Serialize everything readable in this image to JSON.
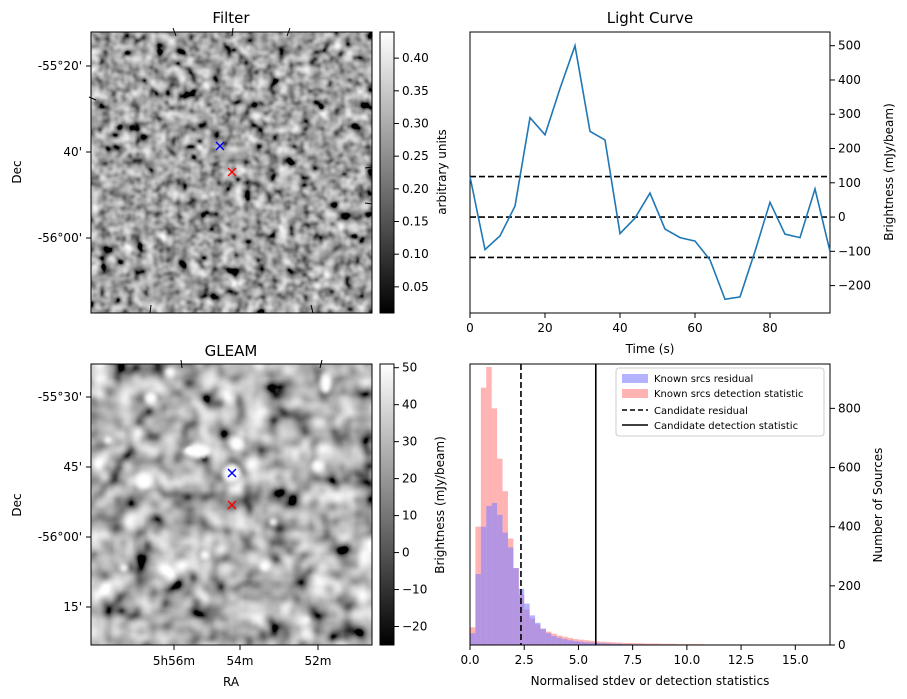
{
  "chart_data": [
    {
      "type": "heatmap",
      "title": "Filter",
      "ylabel": "Dec",
      "y_ticks": [
        "-55°20'",
        "40'",
        "-56°00'"
      ],
      "colorbar": {
        "label": "arbitrary units",
        "range": [
          0.01,
          0.44
        ],
        "ticks": [
          "0.05",
          "0.10",
          "0.15",
          "0.20",
          "0.25",
          "0.30",
          "0.35",
          "0.40"
        ]
      },
      "markers": [
        {
          "symbol": "x",
          "color": "#0000ff"
        },
        {
          "symbol": "x",
          "color": "#ff0000"
        }
      ]
    },
    {
      "type": "line",
      "title": "Light Curve",
      "xlabel": "Time (s)",
      "ylabel": "Brightness (mJy/beam)",
      "xlim": [
        0,
        96
      ],
      "ylim": [
        -280,
        540
      ],
      "x_ticks": [
        0,
        20,
        40,
        60,
        80
      ],
      "y_ticks": [
        -200,
        -100,
        0,
        100,
        200,
        300,
        400,
        500
      ],
      "series": [
        {
          "color": "#1f77b4",
          "x": [
            0,
            4,
            8,
            12,
            16,
            20,
            24,
            28,
            32,
            36,
            40,
            44,
            48,
            52,
            56,
            60,
            64,
            68,
            72,
            76,
            80,
            84,
            88,
            92,
            96
          ],
          "y": [
            118,
            -95,
            -55,
            32,
            290,
            240,
            375,
            500,
            250,
            225,
            -48,
            -3,
            70,
            -35,
            -60,
            -70,
            -125,
            -240,
            -233,
            -100,
            43,
            -50,
            -60,
            82,
            -100
          ]
        }
      ],
      "hlines": [
        {
          "y": 118,
          "style": "dashed",
          "color": "#000000"
        },
        {
          "y": 0,
          "style": "dashed",
          "color": "#000000"
        },
        {
          "y": -118,
          "style": "dashed",
          "color": "#000000"
        }
      ]
    },
    {
      "type": "heatmap",
      "title": "GLEAM",
      "xlabel": "RA",
      "ylabel": "Dec",
      "x_ticks": [
        "5h56m",
        "54m",
        "52m"
      ],
      "y_ticks": [
        "-55°30'",
        "45'",
        "-56°00'",
        "15'"
      ],
      "colorbar": {
        "label": "Brightness (mJy/beam)",
        "range": [
          -25,
          51
        ],
        "ticks": [
          "−20",
          "−10",
          "0",
          "10",
          "20",
          "30",
          "40",
          "50"
        ]
      },
      "markers": [
        {
          "symbol": "x",
          "color": "#0000ff"
        },
        {
          "symbol": "x",
          "color": "#ff0000"
        }
      ]
    },
    {
      "type": "bar",
      "subtype": "histogram",
      "xlabel": "Normalised stdev or detection statistics",
      "ylabel": "Number of Sources",
      "xlim": [
        0,
        16.6
      ],
      "ylim": [
        0,
        950
      ],
      "x_ticks": [
        "0.0",
        "2.5",
        "5.0",
        "7.5",
        "10.0",
        "12.5",
        "15.0"
      ],
      "y_ticks": [
        0,
        200,
        400,
        600,
        800
      ],
      "legend_position": "top-right",
      "bin_width": 0.25,
      "series": [
        {
          "name": "Known srcs residual",
          "color": "#8080ff",
          "values": [
            40,
            240,
            400,
            470,
            480,
            440,
            380,
            330,
            260,
            190,
            140,
            100,
            75,
            55,
            40,
            30,
            25,
            20,
            16,
            13,
            11,
            9,
            8,
            7,
            6,
            5,
            4,
            4,
            3,
            3,
            2,
            2,
            2,
            1,
            1,
            1,
            1,
            1,
            1,
            1
          ]
        },
        {
          "name": "Known srcs detection statistic",
          "color": "#ff8080",
          "values": [
            60,
            400,
            870,
            940,
            800,
            630,
            520,
            360,
            260,
            170,
            120,
            90,
            70,
            55,
            45,
            38,
            32,
            28,
            24,
            20,
            18,
            16,
            14,
            12,
            11,
            10,
            9,
            8,
            7,
            7,
            6,
            6,
            5,
            5,
            5,
            4,
            4,
            4,
            3,
            3,
            3,
            3,
            3,
            2,
            2,
            2,
            2,
            2,
            2,
            2,
            2,
            1,
            1,
            1,
            1,
            1,
            1,
            1,
            1,
            1,
            1,
            1,
            1,
            1
          ]
        }
      ],
      "vlines": [
        {
          "name": "Candidate residual",
          "x": 2.35,
          "style": "dashed",
          "color": "#000000"
        },
        {
          "name": "Candidate detection statistic",
          "x": 5.8,
          "style": "solid",
          "color": "#000000"
        }
      ]
    }
  ]
}
